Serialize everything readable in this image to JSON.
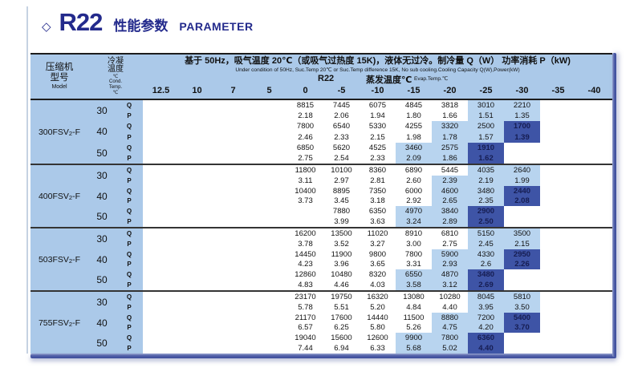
{
  "title": {
    "diamond": "◇",
    "product": "R22",
    "cn": "性能参数",
    "en": "PARAMETER"
  },
  "table_header": {
    "model_cn1": "压缩机",
    "model_cn2": "型号",
    "model_en": "Model",
    "cond_cn1": "冷凝",
    "cond_cn2": "温度",
    "cond_c": "℃",
    "cond_en1": "Cond.",
    "cond_en2": "Temp.",
    "cond_en3": "℃",
    "condition_cn": "基于 50Hz，吸气温度 20℃（或吸气过热度 15K)，液体无过冷。制冷量 Q（W） 功率消耗 P（kW)",
    "condition_en": "Under condition of 50Hz, Suc.Temp 20℃ or Suc.Temp difference 15K, No sub cooling.Cooling Capacity Q(W),Power(kW)",
    "refrigerant": "R22",
    "evap_cn": "蒸发温度℃",
    "evap_en": "Evap.Temp.℃",
    "evap_ticks": [
      "12.5",
      "10",
      "7",
      "5",
      "0",
      "-5",
      "-10",
      "-15",
      "-20",
      "-25",
      "-30",
      "-35",
      "-40"
    ],
    "q_label": "Q",
    "p_label": "P"
  },
  "colors": {
    "accent_navy": "#232a8c",
    "band_blue": "#abc9e9",
    "highlight_blue": "#b8d4ef",
    "deep_blue_cell": "#3e54a6",
    "bar_blue": "#4a5aa2"
  },
  "models": [
    {
      "name": {
        "pre": "300FSV",
        "sub": "2",
        "post": "-F"
      },
      "groups": [
        {
          "cond": "30",
          "q": {
            "s": 4,
            "v": [
              "8815",
              "7445",
              "6075",
              "4845",
              "3818",
              "3010",
              "2210"
            ],
            "b": "wwwwwll"
          },
          "p": {
            "s": 4,
            "v": [
              "2.18",
              "2.06",
              "1.94",
              "1.80",
              "1.66",
              "1.51",
              "1.35"
            ],
            "b": "wwwwwll"
          }
        },
        {
          "cond": "40",
          "q": {
            "s": 4,
            "v": [
              "7800",
              "6540",
              "5330",
              "4255",
              "3320",
              "2500",
              "1700"
            ],
            "b": "wwwwlld"
          },
          "p": {
            "s": 4,
            "v": [
              "2.46",
              "2.33",
              "2.15",
              "1.98",
              "1.78",
              "1.57",
              "1.39"
            ],
            "b": "wwwwlld"
          }
        },
        {
          "cond": "50",
          "q": {
            "s": 4,
            "v": [
              "6850",
              "5620",
              "4525",
              "3460",
              "2575",
              "1910"
            ],
            "b": "wwwlld"
          },
          "p": {
            "s": 4,
            "v": [
              "2.75",
              "2.54",
              "2.33",
              "2.09",
              "1.86",
              "1.62"
            ],
            "b": "wwwlld"
          }
        }
      ]
    },
    {
      "name": {
        "pre": "400FSV",
        "sub": "2",
        "post": "-F"
      },
      "groups": [
        {
          "cond": "30",
          "q": {
            "s": 4,
            "v": [
              "11800",
              "10100",
              "8360",
              "6890",
              "5445",
              "4035",
              "2640"
            ],
            "b": "wwwwwll"
          },
          "p": {
            "s": 4,
            "v": [
              "3.11",
              "2.97",
              "2.81",
              "2.60",
              "2.39",
              "2.19",
              "1.99"
            ],
            "b": "wwwwlll"
          }
        },
        {
          "cond": "40",
          "q": {
            "s": 4,
            "v": [
              "10400",
              "8895",
              "7350",
              "6000",
              "4600",
              "3480",
              "2440"
            ],
            "b": "wwwwlld"
          },
          "p": {
            "s": 4,
            "v": [
              "3.73",
              "3.45",
              "3.18",
              "2.92",
              "2.65",
              "2.35",
              "2.08"
            ],
            "b": "wwwwlld"
          }
        },
        {
          "cond": "50",
          "q": {
            "s": 5,
            "v": [
              "7880",
              "6350",
              "4970",
              "3840",
              "2900"
            ],
            "b": "wwlld"
          },
          "p": {
            "s": 5,
            "v": [
              "3.99",
              "3.63",
              "3.24",
              "2.89",
              "2.50"
            ],
            "b": "wwlld"
          }
        }
      ]
    },
    {
      "name": {
        "pre": "503FSV",
        "sub": "2",
        "post": "-F"
      },
      "groups": [
        {
          "cond": "30",
          "q": {
            "s": 4,
            "v": [
              "16200",
              "13500",
              "11020",
              "8910",
              "6810",
              "5150",
              "3500"
            ],
            "b": "wwwwwll"
          },
          "p": {
            "s": 4,
            "v": [
              "3.78",
              "3.52",
              "3.27",
              "3.00",
              "2.75",
              "2.45",
              "2.15"
            ],
            "b": "wwwwwll"
          }
        },
        {
          "cond": "40",
          "q": {
            "s": 4,
            "v": [
              "14450",
              "11900",
              "9800",
              "7800",
              "5900",
              "4330",
              "2950"
            ],
            "b": "wwwwlld"
          },
          "p": {
            "s": 4,
            "v": [
              "4.23",
              "3.96",
              "3.65",
              "3.31",
              "2.93",
              "2.6",
              "2.26"
            ],
            "b": "wwwwlld"
          }
        },
        {
          "cond": "50",
          "q": {
            "s": 4,
            "v": [
              "12860",
              "10480",
              "8320",
              "6550",
              "4870",
              "3480"
            ],
            "b": "wwwlld"
          },
          "p": {
            "s": 4,
            "v": [
              "4.83",
              "4.46",
              "4.03",
              "3.58",
              "3.12",
              "2.69"
            ],
            "b": "wwwlld"
          }
        }
      ]
    },
    {
      "name": {
        "pre": "755FSV",
        "sub": "2",
        "post": "-F"
      },
      "groups": [
        {
          "cond": "30",
          "q": {
            "s": 4,
            "v": [
              "23170",
              "19750",
              "16320",
              "13080",
              "10280",
              "8045",
              "5810"
            ],
            "b": "wwwwwll"
          },
          "p": {
            "s": 4,
            "v": [
              "5.78",
              "5.51",
              "5.20",
              "4.84",
              "4.40",
              "3.95",
              "3.50"
            ],
            "b": "wwwwwll"
          }
        },
        {
          "cond": "40",
          "q": {
            "s": 4,
            "v": [
              "21170",
              "17600",
              "14440",
              "11500",
              "8880",
              "7200",
              "5400"
            ],
            "b": "wwwwlld"
          },
          "p": {
            "s": 4,
            "v": [
              "6.57",
              "6.25",
              "5.80",
              "5.26",
              "4.75",
              "4.20",
              "3.70"
            ],
            "b": "wwwwlld"
          }
        },
        {
          "cond": "50",
          "q": {
            "s": 4,
            "v": [
              "19040",
              "15600",
              "12600",
              "9900",
              "7800",
              "6360"
            ],
            "b": "wwwlld"
          },
          "p": {
            "s": 4,
            "v": [
              "7.44",
              "6.94",
              "6.33",
              "5.68",
              "5.02",
              "4.40"
            ],
            "b": "wwwlld"
          }
        }
      ]
    }
  ]
}
